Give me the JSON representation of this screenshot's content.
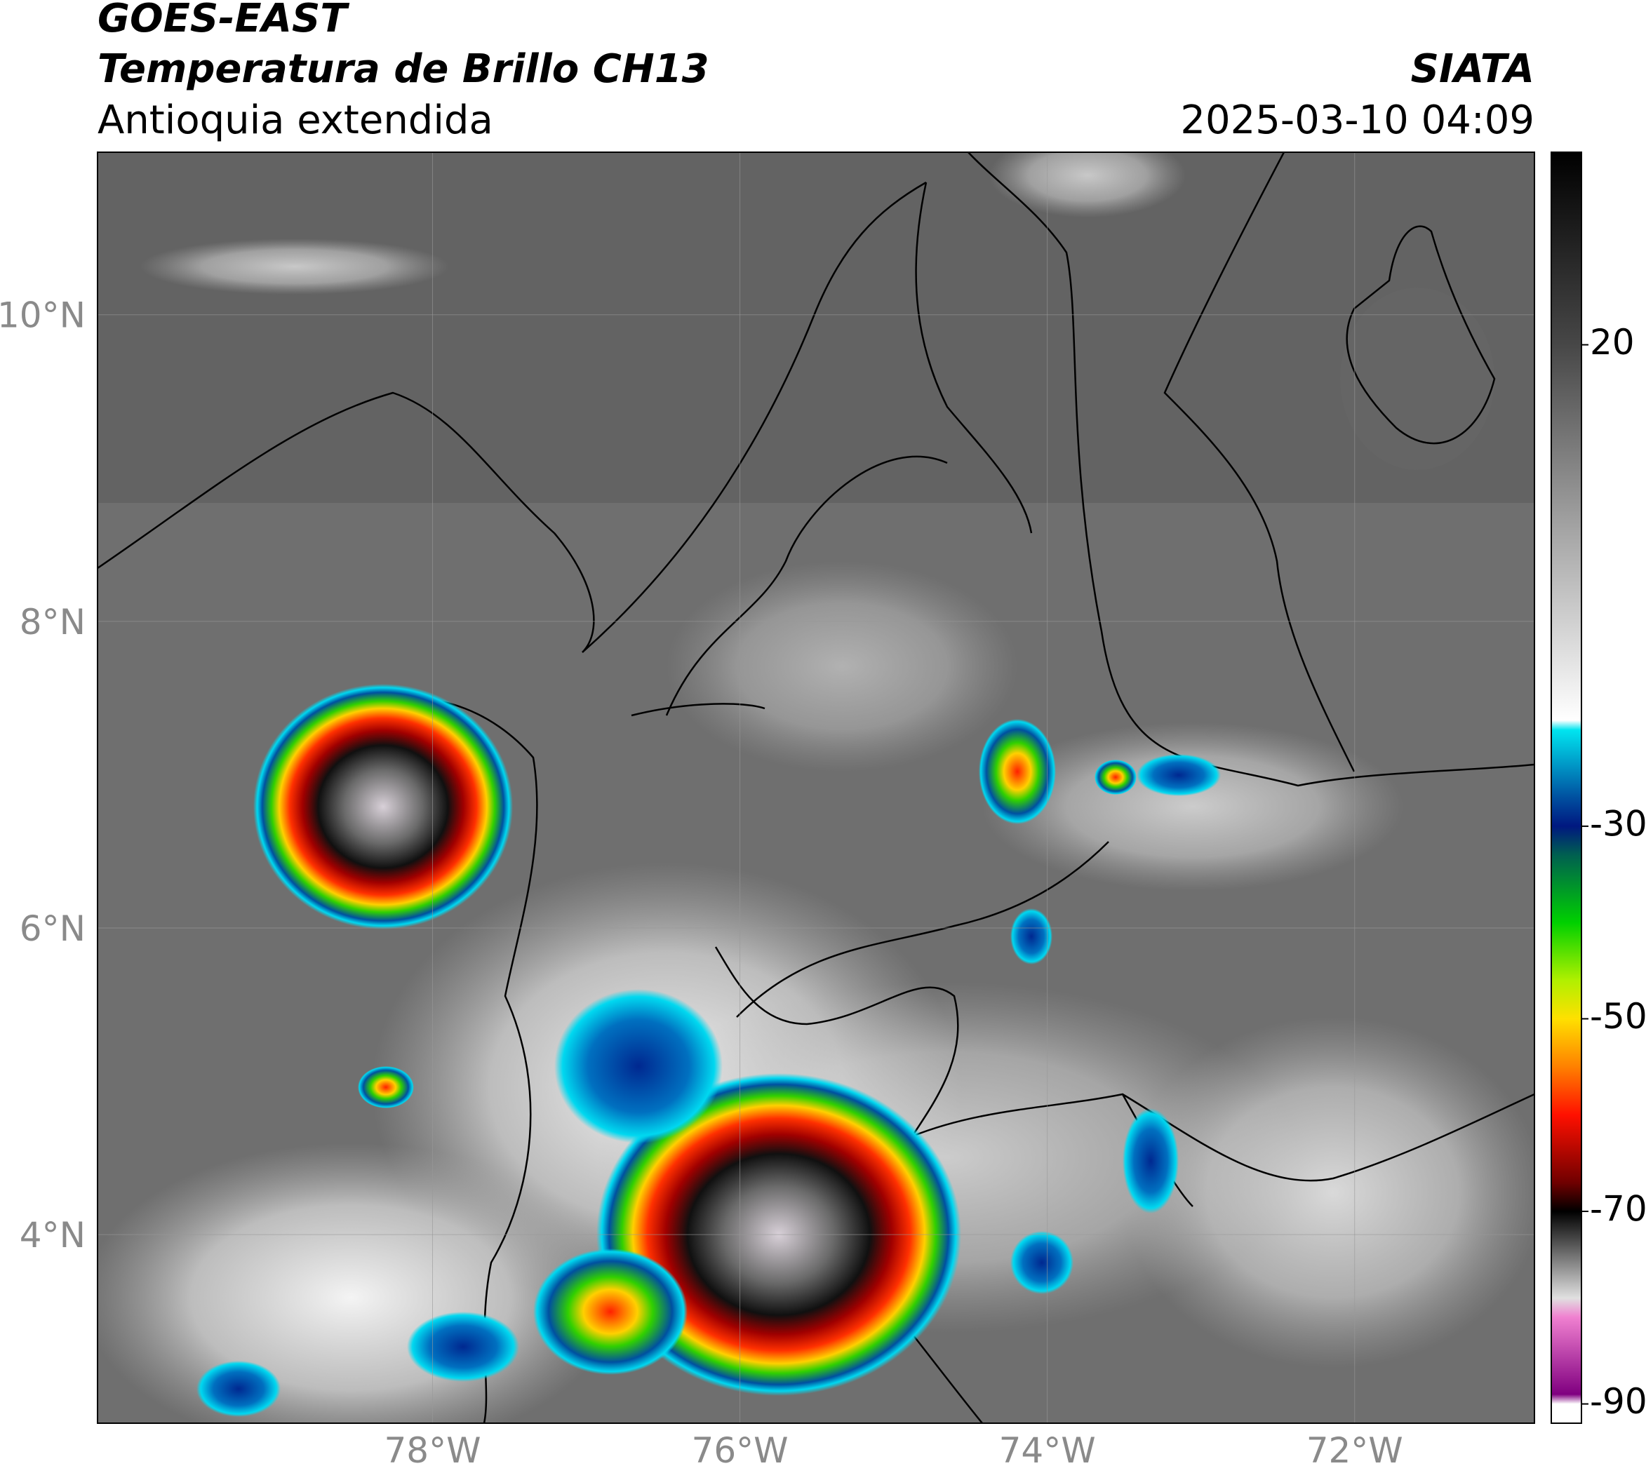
{
  "header": {
    "title": "GOES-EAST",
    "subtitle": "Temperatura de Brillo CH13",
    "region": "Antioquia extendida",
    "source": "SIATA",
    "datetime": "2025-03-10 04:09"
  },
  "map": {
    "xlim": [
      -80.18,
      -70.83
    ],
    "ylim": [
      2.77,
      11.06
    ],
    "xticks": [
      {
        "value": -78,
        "label": "78°W"
      },
      {
        "value": -76,
        "label": "76°W"
      },
      {
        "value": -74,
        "label": "74°W"
      },
      {
        "value": -72,
        "label": "72°W"
      }
    ],
    "yticks": [
      {
        "value": 10,
        "label": "10°N"
      },
      {
        "value": 8,
        "label": "8°N"
      },
      {
        "value": 6,
        "label": "6°N"
      },
      {
        "value": 4,
        "label": "4°N"
      }
    ],
    "grid": true
  },
  "colorbar": {
    "clim": [
      -92,
      40
    ],
    "ticks": [
      20,
      -30,
      -50,
      -70,
      -90
    ],
    "stops": [
      {
        "value": 40,
        "color": "#000000"
      },
      {
        "value": 20,
        "color": "#474747"
      },
      {
        "value": 0,
        "color": "#a8a8a8"
      },
      {
        "value": -19,
        "color": "#ffffff"
      },
      {
        "value": -20,
        "color": "#00e5f0"
      },
      {
        "value": -27,
        "color": "#0050a0"
      },
      {
        "value": -30,
        "color": "#001880"
      },
      {
        "value": -33,
        "color": "#006050"
      },
      {
        "value": -40,
        "color": "#00d000"
      },
      {
        "value": -46,
        "color": "#b0f000"
      },
      {
        "value": -50,
        "color": "#ffe000"
      },
      {
        "value": -55,
        "color": "#ff8000"
      },
      {
        "value": -60,
        "color": "#ff1000"
      },
      {
        "value": -67,
        "color": "#700000"
      },
      {
        "value": -70,
        "color": "#000000"
      },
      {
        "value": -79,
        "color": "#e0e0e0"
      },
      {
        "value": -81,
        "color": "#f080d0"
      },
      {
        "value": -89,
        "color": "#800080"
      },
      {
        "value": -90,
        "color": "#ffffff"
      },
      {
        "value": -92,
        "color": "#ffffff"
      }
    ]
  }
}
